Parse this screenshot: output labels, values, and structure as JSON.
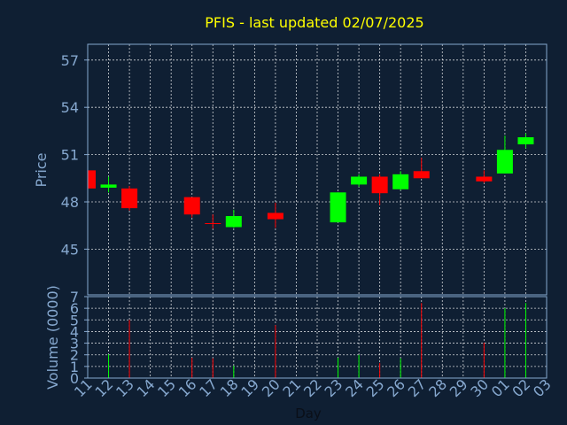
{
  "chart_data": [
    {
      "type": "candlestick",
      "title": "PFIS - last updated 02/07/2025",
      "ylabel": "Price",
      "categories": [
        "11",
        "12",
        "13",
        "14",
        "15",
        "16",
        "17",
        "18",
        "19",
        "20",
        "21",
        "22",
        "23",
        "24",
        "25",
        "26",
        "27",
        "28",
        "29",
        "30",
        "01",
        "02",
        "03"
      ],
      "open": [
        50.0,
        48.9,
        48.85,
        null,
        null,
        48.3,
        46.65,
        46.4,
        null,
        47.3,
        null,
        null,
        46.7,
        49.1,
        49.6,
        48.8,
        49.95,
        null,
        null,
        49.6,
        49.8,
        51.65,
        null
      ],
      "high": [
        50.0,
        49.6,
        49.0,
        null,
        null,
        48.3,
        47.2,
        47.5,
        null,
        47.95,
        null,
        null,
        48.6,
        49.75,
        49.75,
        49.95,
        50.8,
        null,
        null,
        50.0,
        52.2,
        52.35,
        null
      ],
      "low": [
        48.8,
        48.6,
        47.45,
        null,
        null,
        47.0,
        46.3,
        46.35,
        null,
        46.35,
        null,
        null,
        46.7,
        48.95,
        47.8,
        48.75,
        49.5,
        null,
        null,
        49.2,
        49.8,
        51.4,
        null
      ],
      "close": [
        48.85,
        49.1,
        47.6,
        null,
        null,
        47.2,
        46.6,
        47.1,
        null,
        46.9,
        null,
        null,
        48.6,
        49.6,
        48.55,
        49.75,
        49.5,
        null,
        null,
        49.3,
        51.3,
        52.1,
        null
      ],
      "up_color": "#00ff00",
      "down_color": "#ff0000",
      "ylim": [
        42.1,
        58.0
      ],
      "yticks": [
        45,
        48,
        51,
        54,
        57
      ],
      "grid": true
    },
    {
      "type": "bar",
      "ylabel": "Volume (0000)",
      "xlabel": "Day",
      "categories": [
        "11",
        "12",
        "13",
        "14",
        "15",
        "16",
        "17",
        "18",
        "19",
        "20",
        "21",
        "22",
        "23",
        "24",
        "25",
        "26",
        "27",
        "28",
        "29",
        "30",
        "01",
        "02",
        "03"
      ],
      "values": [
        null,
        2.05,
        5.0,
        null,
        null,
        1.75,
        1.7,
        1.05,
        null,
        4.55,
        null,
        null,
        1.75,
        2.0,
        1.3,
        1.7,
        6.45,
        null,
        null,
        3.05,
        6.0,
        6.45,
        null
      ],
      "colors": [
        null,
        "#00ff00",
        "#ff0000",
        null,
        null,
        "#ff0000",
        "#ff0000",
        "#00ff00",
        null,
        "#ff0000",
        null,
        null,
        "#00ff00",
        "#00ff00",
        "#ff0000",
        "#00ff00",
        "#ff0000",
        null,
        null,
        "#ff0000",
        "#00ff00",
        "#00ff00",
        null
      ],
      "ylim": [
        0,
        7
      ],
      "yticks": [
        0,
        1,
        2,
        3,
        4,
        5,
        6,
        7
      ],
      "grid": true
    }
  ]
}
